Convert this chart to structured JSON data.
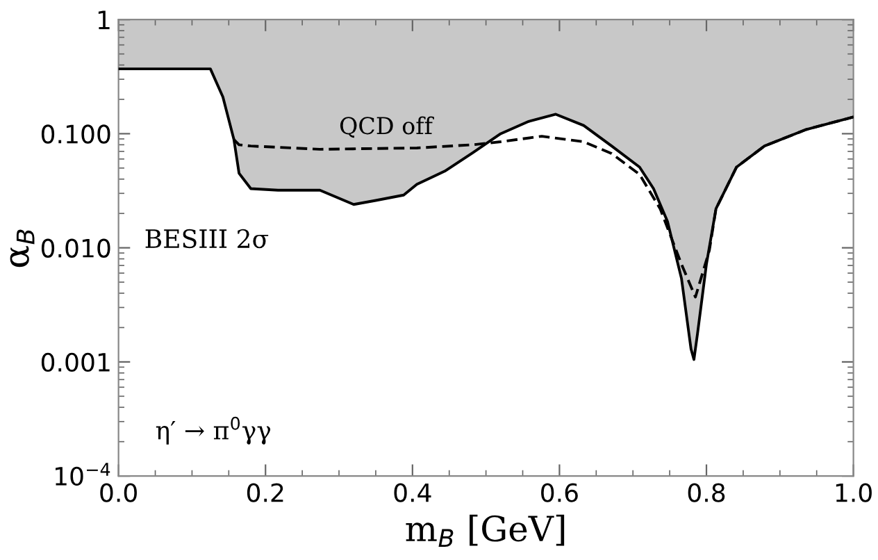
{
  "chart_data": {
    "type": "line",
    "xlabel": "m$_{B}$ [GeV]",
    "ylabel": "α$_{B}$",
    "log": "y",
    "xlim": [
      0,
      1
    ],
    "ylim": [
      0.0001,
      1
    ],
    "xticks": [
      {
        "value": 0,
        "label": "0.0"
      },
      0.2,
      0.4,
      0.6,
      0.8,
      {
        "value": 1,
        "label": "1.0"
      }
    ],
    "yticks": [
      {
        "value": 0.0001,
        "label": "10$^{−4}$"
      },
      0.001,
      {
        "value": 0.01,
        "label": "0.010"
      },
      {
        "value": 0.1,
        "label": "0.100"
      },
      1
    ],
    "grid": false,
    "series": [
      {
        "color": "#000000",
        "line_style": "solid",
        "x": [
          0,
          0.06,
          0.125,
          0.142,
          0.157,
          0.164,
          0.18,
          0.217,
          0.274,
          0.32,
          0.35,
          0.388,
          0.406,
          0.444,
          0.482,
          0.52,
          0.558,
          0.595,
          0.633,
          0.671,
          0.709,
          0.728,
          0.747,
          0.766,
          0.779,
          0.783,
          0.788,
          0.8,
          0.813,
          0.841,
          0.879,
          0.936,
          1.0
        ],
        "values": [
          0.37,
          0.37,
          0.37,
          0.21,
          0.089,
          0.045,
          0.033,
          0.032,
          0.032,
          0.024,
          0.026,
          0.029,
          0.036,
          0.047,
          0.068,
          0.1,
          0.128,
          0.148,
          0.118,
          0.078,
          0.051,
          0.033,
          0.017,
          0.0054,
          0.0013,
          0.00105,
          0.0018,
          0.0072,
          0.022,
          0.051,
          0.078,
          0.109,
          0.14
        ],
        "lower": [
          0.37,
          0.37,
          0.37,
          0.21,
          0.089,
          0.045,
          0.033,
          0.032,
          0.032,
          0.024,
          0.026,
          0.029,
          0.036,
          0.047,
          0.068,
          0.1,
          0.128,
          0.148,
          0.118,
          0.078,
          0.051,
          0.033,
          0.017,
          0.0054,
          0.0013,
          0.00105,
          0.0018,
          0.0072,
          0.022,
          0.051,
          0.078,
          0.109,
          0.14
        ],
        "upper": [
          1,
          1,
          1,
          1,
          1,
          1,
          1,
          1,
          1,
          1,
          1,
          1,
          1,
          1,
          1,
          1,
          1,
          1,
          1,
          1,
          1,
          1,
          1,
          1,
          1,
          1,
          1,
          1,
          1,
          1,
          1,
          1,
          1
        ]
      },
      {
        "color": "#000000",
        "line_style": "dashed",
        "x": [
          0.157,
          0.164,
          0.18,
          0.274,
          0.406,
          0.482,
          0.52,
          0.576,
          0.633,
          0.671,
          0.709,
          0.737,
          0.766,
          0.785,
          0.804,
          0.813,
          0.841,
          0.879,
          0.936,
          1.0
        ],
        "values": [
          0.089,
          0.08,
          0.078,
          0.073,
          0.075,
          0.08,
          0.085,
          0.095,
          0.085,
          0.067,
          0.044,
          0.022,
          0.0072,
          0.0037,
          0.0095,
          0.022,
          0.051,
          0.078,
          0.109,
          0.14
        ]
      }
    ],
    "annotations": [
      {
        "text": "QCD off",
        "x": 0.3,
        "y": 0.085
      },
      "BESIII 2σ",
      "η′ → π$^{0}$γγ"
    ]
  }
}
